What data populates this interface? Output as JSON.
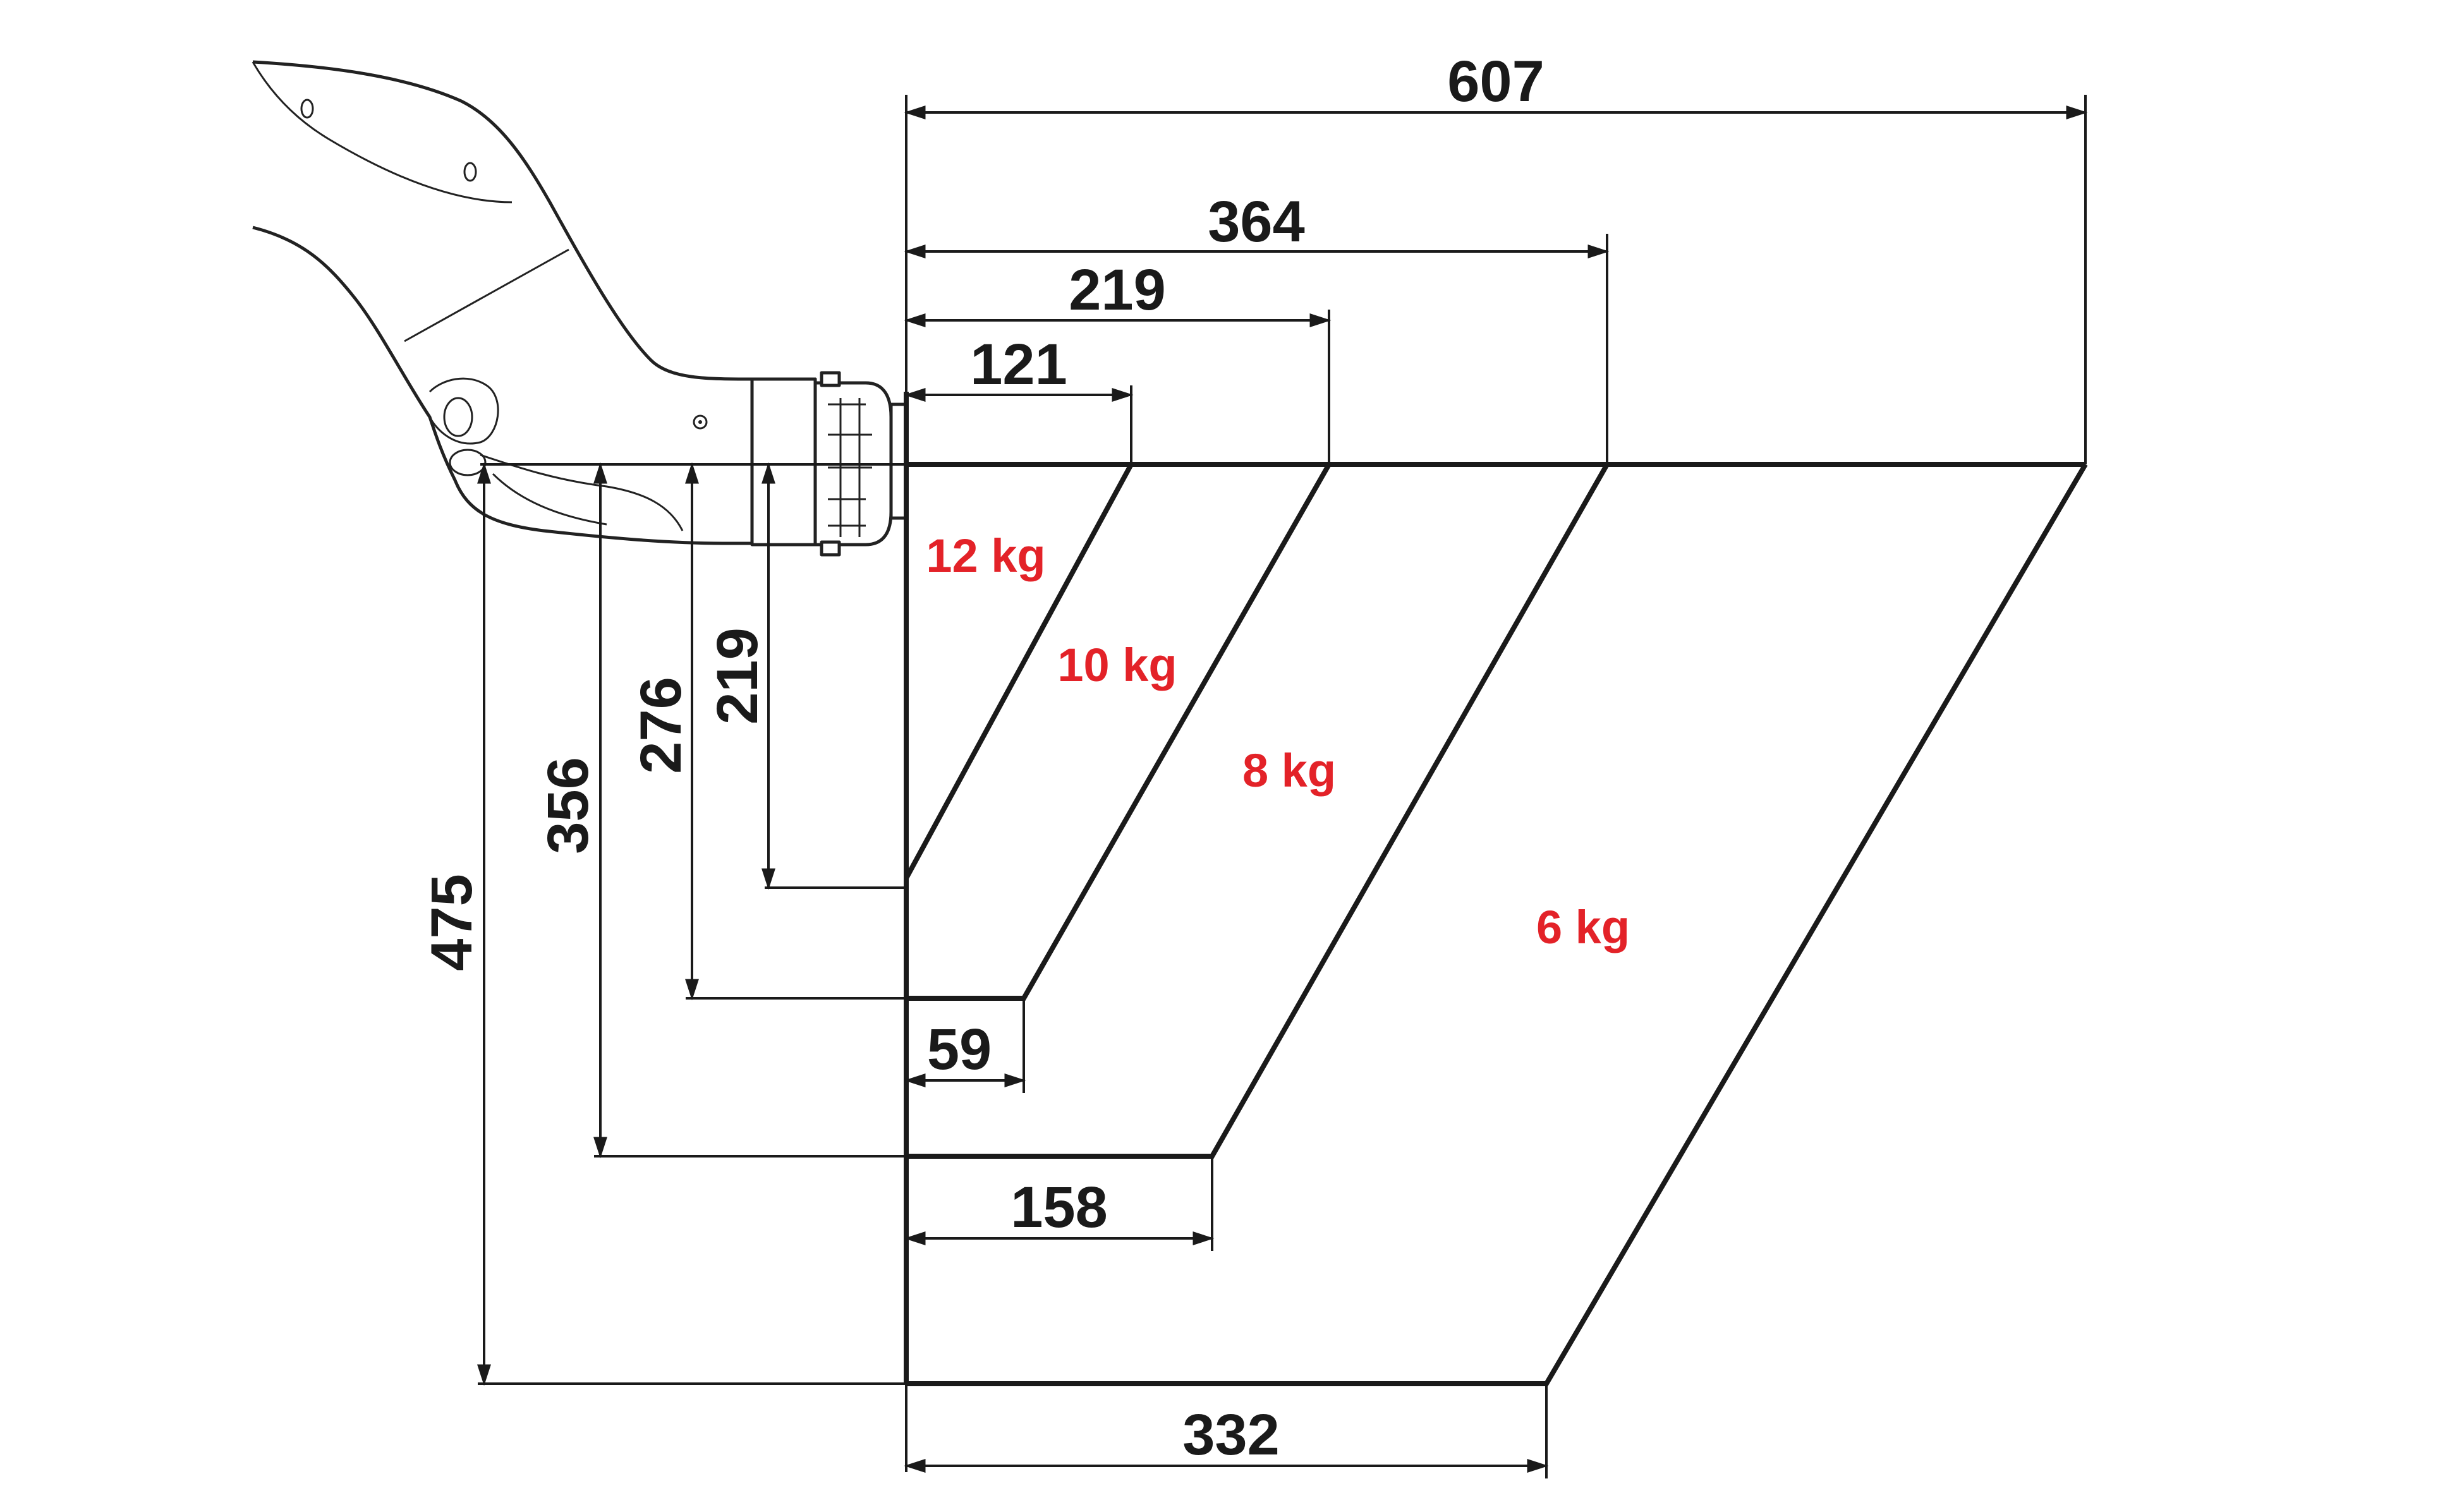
{
  "horizontal_dimensions": {
    "reach_607": "607",
    "reach_364": "364",
    "reach_219": "219",
    "reach_121": "121",
    "offset_59": "59",
    "offset_158": "158",
    "offset_332": "332"
  },
  "vertical_dimensions": {
    "depth_219": "219",
    "depth_276": "276",
    "depth_356": "356",
    "depth_475": "475"
  },
  "load_zones": {
    "zone_1": "12 kg",
    "zone_2": "10 kg",
    "zone_3": "8 kg",
    "zone_4": "6 kg"
  },
  "colors": {
    "load_label": "#e32228",
    "line": "#1a1a1a"
  }
}
